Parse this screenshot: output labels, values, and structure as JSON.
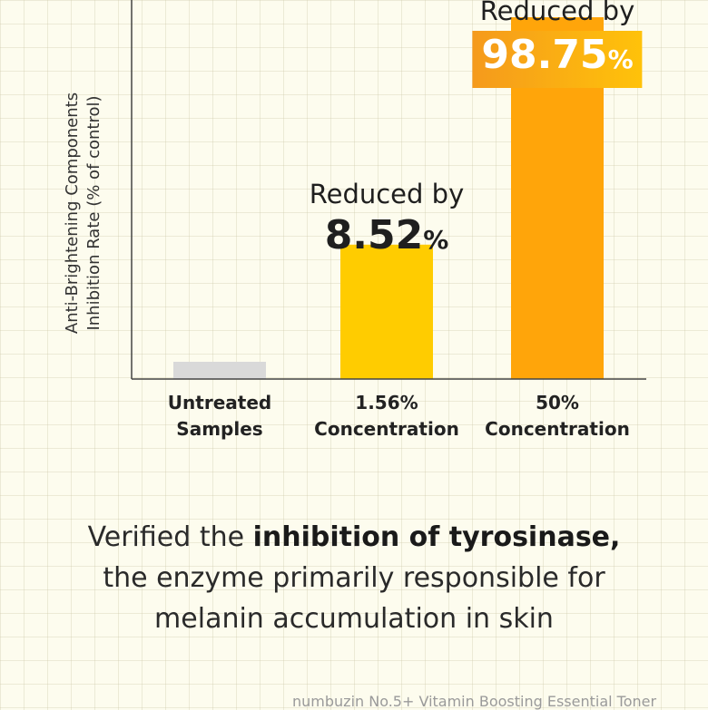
{
  "chart_data": {
    "type": "bar",
    "title": "",
    "xlabel": "",
    "ylabel_lines": [
      "Anti-Brightening Components",
      "Inhibition Rate (% of control)"
    ],
    "categories": [
      [
        "Untreated",
        "Samples"
      ],
      [
        "1.56%",
        "Concentration"
      ],
      [
        "50%",
        "Concentration"
      ]
    ],
    "values": [
      5,
      39,
      105
    ],
    "ylim": [
      0,
      110
    ],
    "bar_colors": [
      "#d9d9d9",
      "#ffcc00",
      "#ffa50a"
    ],
    "annotations": [
      null,
      {
        "label": "Reduced by",
        "value": "8.52",
        "unit": "%"
      },
      {
        "label": "Reduced by",
        "value": "98.75",
        "unit": "%"
      }
    ],
    "grid": false,
    "legend": "none"
  },
  "caption": {
    "line1_pre": "Verified the ",
    "line1_bold": "inhibition of tyrosinase,",
    "line2": "the enzyme primarily responsible for",
    "line3": "melanin accumulation in skin"
  },
  "footer": "numbuzin No.5+ Vitamin Boosting Essential Toner",
  "colors": {
    "background": "#fdfcee",
    "axis": "#444444",
    "highlight_start": "#f59a1c",
    "highlight_end": "#ffc20a"
  }
}
